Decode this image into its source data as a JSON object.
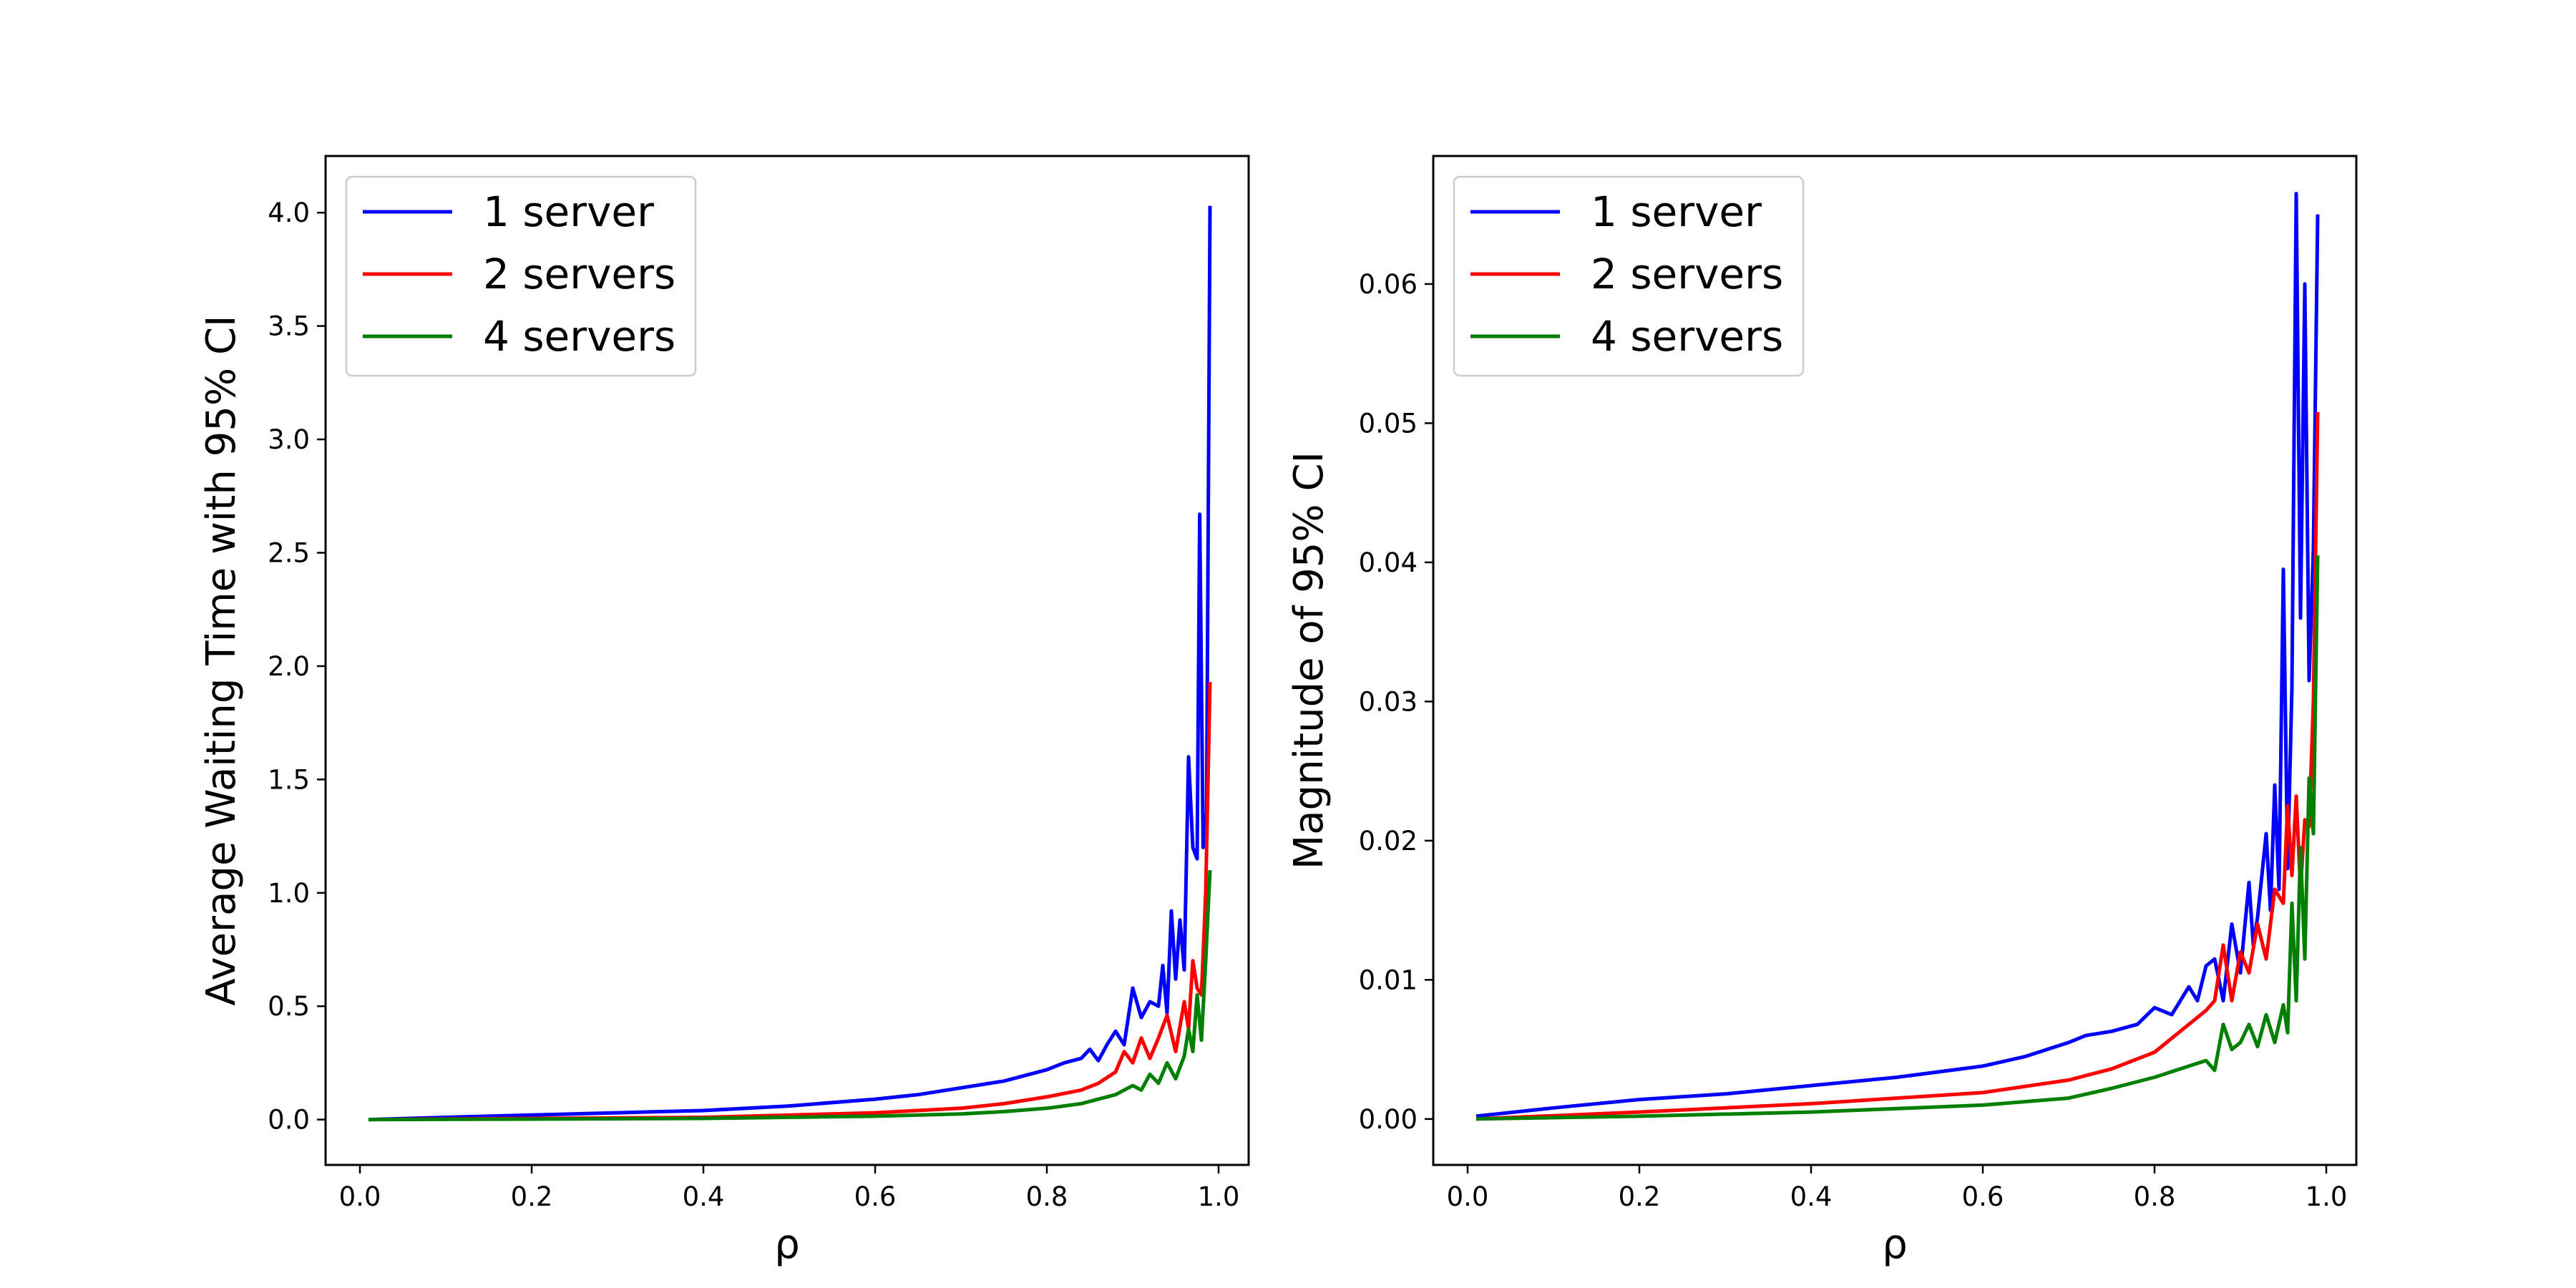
{
  "chart_data": [
    {
      "type": "line",
      "title": "",
      "xlabel": "ρ",
      "ylabel": "Average Waiting Time with 95% CI",
      "xlim": [
        -0.04,
        1.035
      ],
      "ylim": [
        -0.2,
        4.25
      ],
      "xticks": [
        "0.0",
        "0.2",
        "0.4",
        "0.6",
        "0.8",
        "1.0"
      ],
      "yticks": [
        "0.0",
        "0.5",
        "1.0",
        "1.5",
        "2.0",
        "2.5",
        "3.0",
        "3.5",
        "4.0"
      ],
      "legend": "top-left",
      "grid": false,
      "series": [
        {
          "name": "1 server",
          "color": "#0000ff",
          "x": [
            0.01,
            0.1,
            0.2,
            0.3,
            0.4,
            0.5,
            0.6,
            0.65,
            0.7,
            0.75,
            0.78,
            0.8,
            0.82,
            0.84,
            0.85,
            0.86,
            0.87,
            0.88,
            0.89,
            0.9,
            0.91,
            0.92,
            0.93,
            0.935,
            0.94,
            0.945,
            0.95,
            0.955,
            0.96,
            0.965,
            0.97,
            0.975,
            0.978,
            0.982,
            0.986,
            0.99
          ],
          "y": [
            0.0,
            0.01,
            0.02,
            0.03,
            0.04,
            0.06,
            0.09,
            0.11,
            0.14,
            0.17,
            0.2,
            0.22,
            0.25,
            0.27,
            0.31,
            0.26,
            0.33,
            0.39,
            0.33,
            0.58,
            0.45,
            0.52,
            0.5,
            0.68,
            0.47,
            0.92,
            0.62,
            0.88,
            0.66,
            1.6,
            1.2,
            1.15,
            2.67,
            1.2,
            1.35,
            4.03
          ]
        },
        {
          "name": "2 servers",
          "color": "#ff0000",
          "x": [
            0.01,
            0.2,
            0.4,
            0.6,
            0.7,
            0.75,
            0.8,
            0.84,
            0.86,
            0.88,
            0.89,
            0.9,
            0.91,
            0.92,
            0.93,
            0.94,
            0.95,
            0.96,
            0.965,
            0.97,
            0.975,
            0.98,
            0.985,
            0.99
          ],
          "y": [
            0.0,
            0.005,
            0.01,
            0.03,
            0.05,
            0.07,
            0.1,
            0.13,
            0.16,
            0.21,
            0.3,
            0.25,
            0.36,
            0.27,
            0.36,
            0.46,
            0.3,
            0.52,
            0.4,
            0.7,
            0.58,
            0.55,
            1.0,
            1.93
          ]
        },
        {
          "name": "4 servers",
          "color": "#007f00",
          "x": [
            0.01,
            0.2,
            0.4,
            0.6,
            0.7,
            0.75,
            0.8,
            0.84,
            0.86,
            0.88,
            0.9,
            0.91,
            0.92,
            0.93,
            0.94,
            0.95,
            0.96,
            0.965,
            0.97,
            0.975,
            0.98,
            0.985,
            0.99
          ],
          "y": [
            0.0,
            0.002,
            0.005,
            0.015,
            0.025,
            0.035,
            0.05,
            0.07,
            0.09,
            0.11,
            0.15,
            0.13,
            0.2,
            0.16,
            0.25,
            0.18,
            0.28,
            0.4,
            0.3,
            0.55,
            0.35,
            0.7,
            1.1
          ]
        }
      ]
    },
    {
      "type": "line",
      "title": "",
      "xlabel": "ρ",
      "ylabel": "Magnitude of 95% CI",
      "xlim": [
        -0.04,
        1.035
      ],
      "ylim": [
        -0.0033,
        0.0692
      ],
      "xticks": [
        "0.0",
        "0.2",
        "0.4",
        "0.6",
        "0.8",
        "1.0"
      ],
      "yticks": [
        "0.00",
        "0.01",
        "0.02",
        "0.03",
        "0.04",
        "0.05",
        "0.06"
      ],
      "legend": "top-left",
      "grid": false,
      "series": [
        {
          "name": "1 server",
          "color": "#0000ff",
          "x": [
            0.01,
            0.1,
            0.2,
            0.3,
            0.4,
            0.5,
            0.6,
            0.65,
            0.7,
            0.72,
            0.75,
            0.78,
            0.8,
            0.82,
            0.84,
            0.85,
            0.86,
            0.87,
            0.88,
            0.89,
            0.9,
            0.91,
            0.915,
            0.92,
            0.93,
            0.935,
            0.94,
            0.945,
            0.95,
            0.955,
            0.96,
            0.965,
            0.97,
            0.975,
            0.98,
            0.985,
            0.99
          ],
          "y": [
            0.0002,
            0.0008,
            0.0014,
            0.0018,
            0.0024,
            0.003,
            0.0038,
            0.0045,
            0.0055,
            0.006,
            0.0063,
            0.0068,
            0.008,
            0.0075,
            0.0095,
            0.0085,
            0.011,
            0.0115,
            0.0085,
            0.014,
            0.0105,
            0.017,
            0.0125,
            0.0145,
            0.0205,
            0.015,
            0.024,
            0.0165,
            0.0395,
            0.018,
            0.031,
            0.0665,
            0.036,
            0.06,
            0.0315,
            0.041,
            0.065
          ]
        },
        {
          "name": "2 servers",
          "color": "#ff0000",
          "x": [
            0.01,
            0.2,
            0.4,
            0.6,
            0.7,
            0.75,
            0.8,
            0.82,
            0.84,
            0.86,
            0.87,
            0.88,
            0.89,
            0.9,
            0.91,
            0.92,
            0.93,
            0.94,
            0.95,
            0.955,
            0.96,
            0.965,
            0.97,
            0.975,
            0.98,
            0.985,
            0.99
          ],
          "y": [
            0.0,
            0.0005,
            0.0011,
            0.0019,
            0.0028,
            0.0036,
            0.0048,
            0.0058,
            0.0068,
            0.0078,
            0.0085,
            0.0125,
            0.0085,
            0.012,
            0.0105,
            0.014,
            0.0115,
            0.0165,
            0.0155,
            0.0225,
            0.0175,
            0.0232,
            0.0165,
            0.0215,
            0.021,
            0.03,
            0.0508
          ]
        },
        {
          "name": "4 servers",
          "color": "#007f00",
          "x": [
            0.01,
            0.2,
            0.4,
            0.6,
            0.7,
            0.75,
            0.8,
            0.84,
            0.86,
            0.87,
            0.88,
            0.89,
            0.9,
            0.91,
            0.92,
            0.93,
            0.94,
            0.95,
            0.955,
            0.96,
            0.965,
            0.97,
            0.975,
            0.98,
            0.985,
            0.99
          ],
          "y": [
            0.0,
            0.0002,
            0.0005,
            0.001,
            0.0015,
            0.0022,
            0.003,
            0.0038,
            0.0042,
            0.0035,
            0.0068,
            0.005,
            0.0055,
            0.0068,
            0.0052,
            0.0075,
            0.0055,
            0.0082,
            0.0062,
            0.0155,
            0.0085,
            0.0195,
            0.0115,
            0.0245,
            0.0205,
            0.0405
          ]
        }
      ]
    }
  ]
}
